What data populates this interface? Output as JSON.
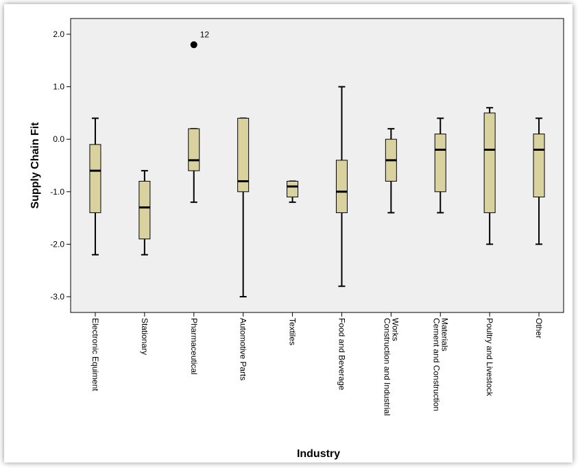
{
  "chart_data": {
    "type": "boxplot",
    "xlabel": "Industry",
    "ylabel": "Supply Chain Fit",
    "ylim": [
      -3.3,
      2.3
    ],
    "yticks": [
      {
        "value": 2.0,
        "label": "2.0"
      },
      {
        "value": 1.0,
        "label": "1.0"
      },
      {
        "value": 0.0,
        "label": "0.0"
      },
      {
        "value": -1.0,
        "label": "-1.0"
      },
      {
        "value": -2.0,
        "label": "-2.0"
      },
      {
        "value": -3.0,
        "label": "-3.0"
      }
    ],
    "grid": false,
    "colors": {
      "box_fill": "#d9d29f",
      "plot_bg": "#efefef",
      "stroke": "#000000"
    },
    "categories": [
      {
        "label": [
          "Electronic Equiment"
        ],
        "min": -2.2,
        "q1": -1.4,
        "median": -0.6,
        "q3": -0.1,
        "max": 0.4,
        "outliers": []
      },
      {
        "label": [
          "Stationary"
        ],
        "min": -2.2,
        "q1": -1.9,
        "median": -1.3,
        "q3": -0.8,
        "max": -0.6,
        "outliers": []
      },
      {
        "label": [
          "Pharmaceutical"
        ],
        "min": -1.2,
        "q1": -0.6,
        "median": -0.4,
        "q3": 0.2,
        "max": 0.2,
        "outliers": [
          {
            "value": 1.8,
            "label": "12"
          }
        ]
      },
      {
        "label": [
          "Automotive Parts"
        ],
        "min": -3.0,
        "q1": -1.0,
        "median": -0.8,
        "q3": 0.4,
        "max": 0.4,
        "outliers": []
      },
      {
        "label": [
          "Textiles"
        ],
        "min": -1.2,
        "q1": -1.1,
        "median": -0.9,
        "q3": -0.8,
        "max": -0.8,
        "outliers": []
      },
      {
        "label": [
          "Food and Beverage"
        ],
        "min": -2.8,
        "q1": -1.4,
        "median": -1.0,
        "q3": -0.4,
        "max": 1.0,
        "outliers": []
      },
      {
        "label": [
          "Construction and Industrial",
          "Works"
        ],
        "min": -1.4,
        "q1": -0.8,
        "median": -0.4,
        "q3": 0.0,
        "max": 0.2,
        "outliers": []
      },
      {
        "label": [
          "Cement and Construction",
          "Materials"
        ],
        "min": -1.4,
        "q1": -1.0,
        "median": -0.2,
        "q3": 0.1,
        "max": 0.4,
        "outliers": []
      },
      {
        "label": [
          "Poultry and Livestock"
        ],
        "min": -2.0,
        "q1": -1.4,
        "median": -0.2,
        "q3": 0.5,
        "max": 0.6,
        "outliers": []
      },
      {
        "label": [
          "Other"
        ],
        "min": -2.0,
        "q1": -1.1,
        "median": -0.2,
        "q3": 0.1,
        "max": 0.4,
        "outliers": []
      }
    ]
  }
}
